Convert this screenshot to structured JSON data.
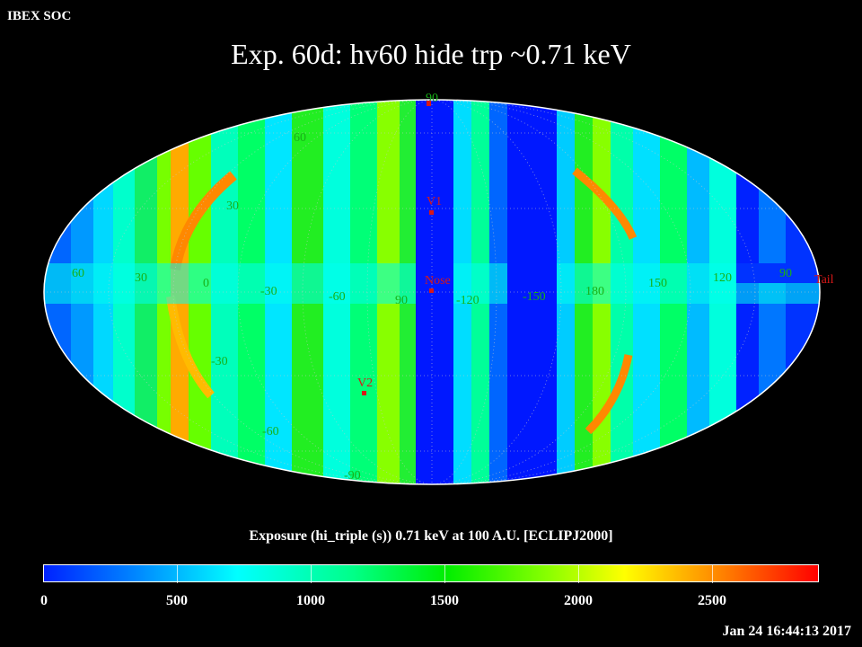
{
  "header": {
    "org": "IBEX SOC",
    "title": "Exp.   60d: hv60 hide trp ~0.71 keV",
    "timestamp": "Jan 24 16:44:13 2017"
  },
  "map": {
    "projection": "Mollweide",
    "lat_labels": {
      "north_pole": "90",
      "n60": "60",
      "n30": "30",
      "s30": "-30",
      "s60": "-60",
      "south_pole": "-90"
    },
    "lon_labels": [
      "60",
      "30",
      "0",
      "-30",
      "-60",
      "90",
      "-120",
      "-150",
      "180",
      "150",
      "120",
      "90"
    ],
    "markers": [
      {
        "id": "v1",
        "label": "V1",
        "color": "#d81818"
      },
      {
        "id": "nose",
        "label": "Nose",
        "color": "#d81818"
      },
      {
        "id": "v2",
        "label": "V2",
        "color": "#d81818"
      },
      {
        "id": "tail",
        "label": "Tail",
        "color": "#d81818"
      }
    ],
    "label_color_grid": "#18b018",
    "label_color_markers": "#d81818"
  },
  "colorbar": {
    "title": "Exposure (hi_triple (s))  0.71 keV at 100 A.U. [ECLIPJ2000]",
    "tick_labels": [
      "0",
      "500",
      "1000",
      "1500",
      "2000",
      "2500"
    ],
    "range": [
      0,
      2900
    ]
  }
}
